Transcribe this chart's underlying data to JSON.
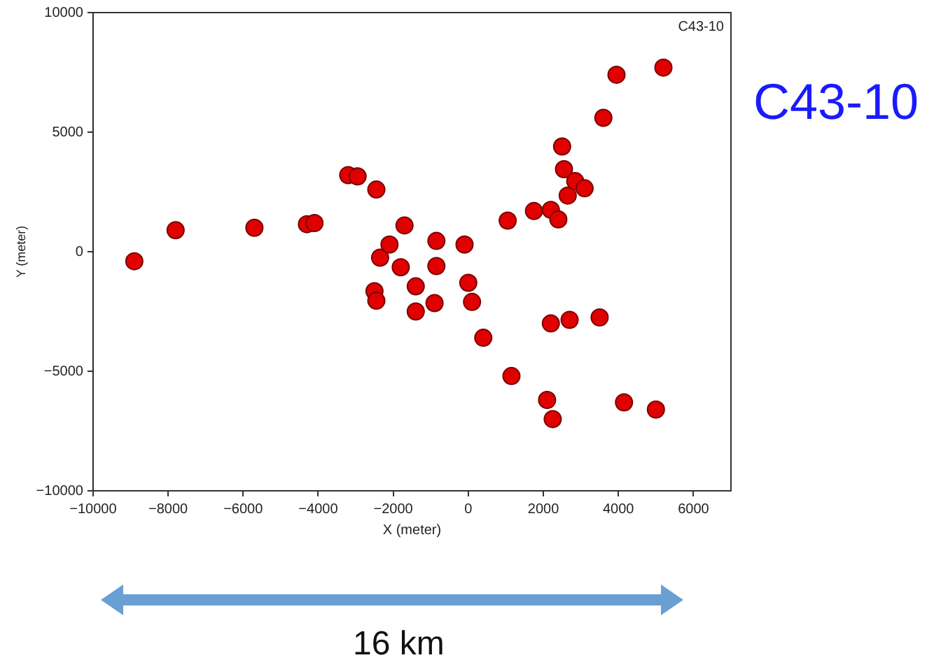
{
  "chart_data": {
    "type": "scatter",
    "title": "C43-10",
    "xlabel": "X (meter)",
    "ylabel": "Y (meter)",
    "annotations": [
      {
        "text": "C43-10"
      },
      "16 km"
    ],
    "x": [
      -8900,
      -7800,
      -5700,
      -4300,
      -4100,
      -3200,
      -2950,
      -2450,
      -2350,
      -2500,
      -2450,
      -2100,
      -1800,
      -1700,
      -1400,
      -1400,
      -900,
      -850,
      -850,
      -100,
      0,
      100,
      400,
      1050,
      1150,
      1750,
      2100,
      2250,
      2200,
      2200,
      2400,
      2500,
      2550,
      2700,
      2650,
      2850,
      3100,
      3500,
      3600,
      3950,
      4150,
      5000,
      5200
    ],
    "series": [
      {
        "color": "#e00000",
        "values": [
          -400,
          900,
          1000,
          1150,
          1200,
          3200,
          3150,
          2600,
          -250,
          -1650,
          -2050,
          300,
          -650,
          1100,
          -1450,
          -2500,
          -2150,
          450,
          -600,
          300,
          -1300,
          -2100,
          -3600,
          1300,
          -5200,
          1700,
          -6200,
          -7000,
          1750,
          -3000,
          1350,
          4400,
          3450,
          -2850,
          2350,
          2950,
          2650,
          -2750,
          5600,
          7400,
          -6300,
          -6600,
          7700
        ]
      }
    ],
    "xlim": [
      -10000,
      7000
    ],
    "xticks": [
      -10000,
      -8000,
      -6000,
      -4000,
      -2000,
      0,
      2000,
      4000,
      6000
    ],
    "ylim": [
      -10000,
      10000
    ],
    "yticks": [
      -10000,
      -5000,
      0,
      5000,
      10000
    ],
    "marker": "circle"
  }
}
